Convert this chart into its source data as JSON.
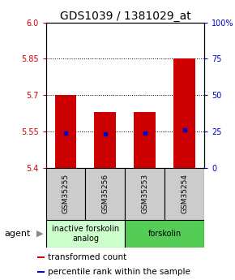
{
  "title": "GDS1039 / 1381029_at",
  "samples": [
    "GSM35255",
    "GSM35256",
    "GSM35253",
    "GSM35254"
  ],
  "bar_bottoms": [
    5.4,
    5.4,
    5.4,
    5.4
  ],
  "bar_tops": [
    5.7,
    5.63,
    5.63,
    5.85
  ],
  "percentile_values": [
    5.545,
    5.54,
    5.543,
    5.558
  ],
  "ylim": [
    5.4,
    6.0
  ],
  "yticks_left": [
    5.4,
    5.55,
    5.7,
    5.85,
    6.0
  ],
  "yticks_right": [
    0,
    25,
    50,
    75,
    100
  ],
  "ytick_right_labels": [
    "0",
    "25",
    "50",
    "75",
    "100%"
  ],
  "hlines": [
    5.55,
    5.7,
    5.85
  ],
  "bar_color": "#cc0000",
  "percentile_color": "#0000cc",
  "bar_width": 0.55,
  "agent_groups": [
    {
      "label": "inactive forskolin\nanalog",
      "span": [
        0,
        2
      ],
      "color": "#ccffcc"
    },
    {
      "label": "forskolin",
      "span": [
        2,
        4
      ],
      "color": "#55cc55"
    }
  ],
  "legend_items": [
    {
      "color": "#cc0000",
      "label": "transformed count"
    },
    {
      "color": "#0000cc",
      "label": "percentile rank within the sample"
    }
  ],
  "agent_label": "agent",
  "tick_label_color_left": "#cc0000",
  "tick_label_color_right": "#0000cc",
  "title_fontsize": 10,
  "axis_fontsize": 7,
  "legend_fontsize": 7.5,
  "sample_fontsize": 6.5,
  "agent_fontsize": 7
}
